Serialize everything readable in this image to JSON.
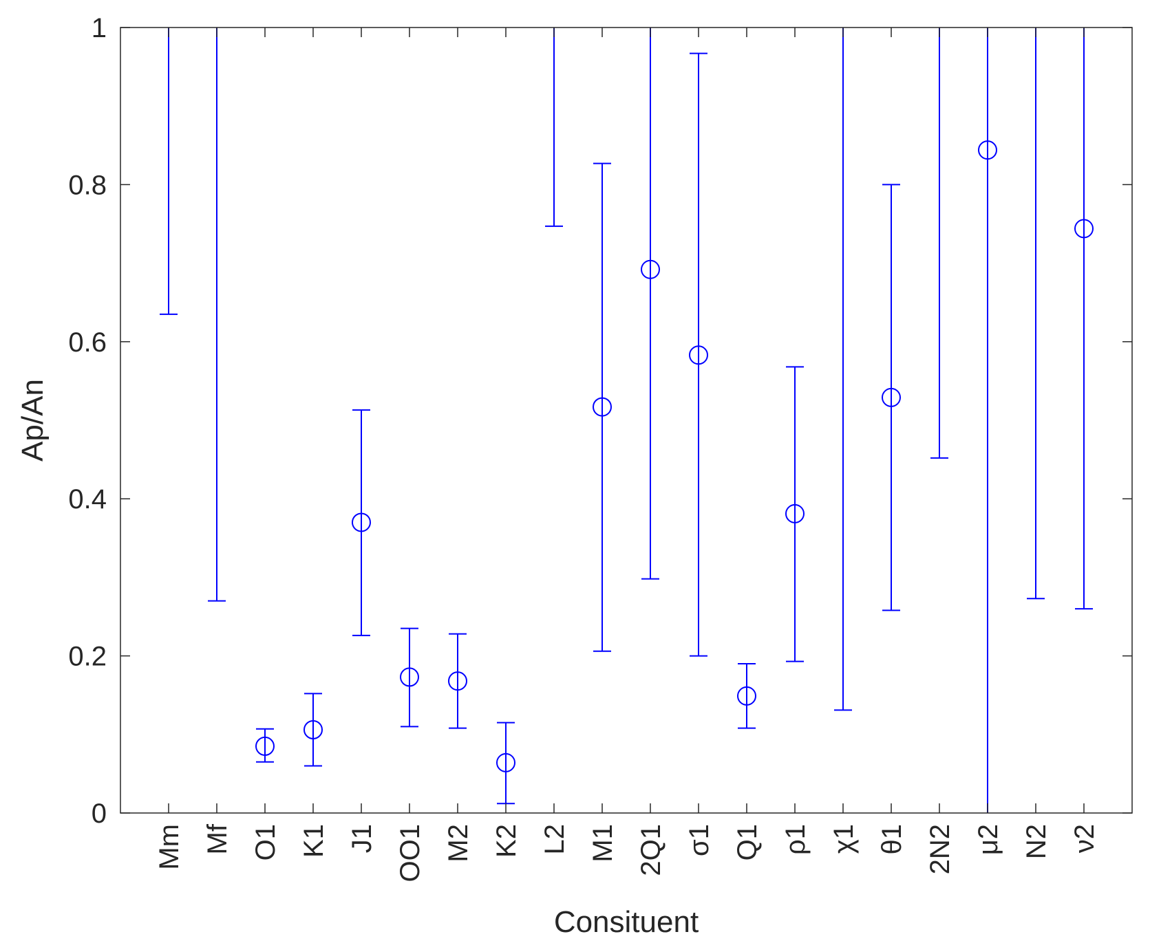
{
  "chart_data": {
    "type": "scatter",
    "title": "",
    "xlabel": "Consituent",
    "ylabel": "Ap/An",
    "ylim": [
      0,
      1
    ],
    "yticks": [
      "0",
      "0.2",
      "0.4",
      "0.6",
      "0.8",
      "1"
    ],
    "grid": false,
    "categories": [
      "Mm",
      "Mf",
      "O1",
      "K1",
      "J1",
      "OO1",
      "M2",
      "K2",
      "L2",
      "M1",
      "2Q1",
      "σ1",
      "Q1",
      "ρ1",
      "χ1",
      "θ1",
      "2N2",
      "μ2",
      "N2",
      "ν2"
    ],
    "series": [
      {
        "marker": "circle",
        "color": "#0000ff",
        "points": [
          {
            "x": "Mm",
            "y": null,
            "lower": 0.635,
            "upper": 1.0
          },
          {
            "x": "Mf",
            "y": null,
            "lower": 0.27,
            "upper": 1.0
          },
          {
            "x": "O1",
            "y": 0.085,
            "lower": 0.065,
            "upper": 0.107
          },
          {
            "x": "K1",
            "y": 0.106,
            "lower": 0.06,
            "upper": 0.152
          },
          {
            "x": "J1",
            "y": 0.37,
            "lower": 0.226,
            "upper": 0.513
          },
          {
            "x": "OO1",
            "y": 0.173,
            "lower": 0.11,
            "upper": 0.235
          },
          {
            "x": "M2",
            "y": 0.168,
            "lower": 0.108,
            "upper": 0.228
          },
          {
            "x": "K2",
            "y": 0.064,
            "lower": 0.012,
            "upper": 0.115
          },
          {
            "x": "L2",
            "y": null,
            "lower": 0.747,
            "upper": 1.0
          },
          {
            "x": "M1",
            "y": 0.517,
            "lower": 0.206,
            "upper": 0.827
          },
          {
            "x": "2Q1",
            "y": 0.692,
            "lower": 0.298,
            "upper": 1.0
          },
          {
            "x": "σ1",
            "y": 0.583,
            "lower": 0.2,
            "upper": 0.967
          },
          {
            "x": "Q1",
            "y": 0.149,
            "lower": 0.108,
            "upper": 0.19
          },
          {
            "x": "ρ1",
            "y": 0.381,
            "lower": 0.193,
            "upper": 0.568
          },
          {
            "x": "χ1",
            "y": null,
            "lower": 0.131,
            "upper": 1.0
          },
          {
            "x": "θ1",
            "y": 0.529,
            "lower": 0.258,
            "upper": 0.8
          },
          {
            "x": "2N2",
            "y": null,
            "lower": 0.452,
            "upper": 1.0
          },
          {
            "x": "μ2",
            "y": 0.844,
            "lower": 0.0,
            "upper": 1.0
          },
          {
            "x": "N2",
            "y": null,
            "lower": 0.273,
            "upper": 1.0
          },
          {
            "x": "ν2",
            "y": 0.744,
            "lower": 0.26,
            "upper": 1.0
          }
        ]
      }
    ]
  }
}
